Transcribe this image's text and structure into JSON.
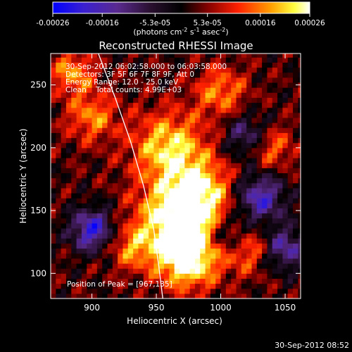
{
  "chart_data": {
    "type": "heatmap",
    "title": "Reconstructed RHESSI Image",
    "xlabel": "Heliocentric X (arcsec)",
    "ylabel": "Heliocentric Y (arcsec)",
    "xlim": [
      868,
      1062
    ],
    "ylim": [
      80,
      275
    ],
    "x_ticks": [
      900,
      950,
      1000,
      1050
    ],
    "y_ticks": [
      100,
      150,
      200,
      250
    ],
    "colorbar": {
      "range": [
        -0.00026,
        0.00026
      ],
      "tick_labels": [
        "-0.00026",
        "-0.00016",
        "-5.3e-05",
        "5.3e-05",
        "0.00016",
        "0.00026"
      ],
      "units_prefix": "(photons cm",
      "units_exp1": "-2",
      "units_mid": " s",
      "units_exp2": "-1",
      "units_mid2": " asec",
      "units_exp3": "-2",
      "units_suffix": ")"
    },
    "info_lines": [
      "30-Sep-2012 06:02:58.000 to 06:03:58.000",
      "Detectors: 3F 5F 6F 7F 8F 9F, Att 0",
      "Energy Range: 12.0 - 25.0 keV",
      "Clean    Total counts: 4.99E+03"
    ],
    "peak_label": "Position of Peak = [967,135]",
    "peak": [
      967,
      135
    ],
    "limb_points": [
      [
        905,
        275
      ],
      [
        918,
        240
      ],
      [
        930,
        205
      ],
      [
        940,
        170
      ],
      [
        948,
        135
      ],
      [
        952,
        105
      ],
      [
        955,
        80
      ]
    ],
    "hotspots": [
      {
        "x": 965,
        "y": 140,
        "amp": 1.0,
        "s": 22
      },
      {
        "x": 960,
        "y": 200,
        "amp": 0.8,
        "s": 20
      },
      {
        "x": 985,
        "y": 165,
        "amp": 0.7,
        "s": 18
      },
      {
        "x": 975,
        "y": 110,
        "amp": 0.85,
        "s": 16
      },
      {
        "x": 900,
        "y": 225,
        "amp": 0.55,
        "s": 14
      },
      {
        "x": 885,
        "y": 260,
        "amp": 0.6,
        "s": 12
      },
      {
        "x": 1000,
        "y": 245,
        "amp": 0.55,
        "s": 14
      },
      {
        "x": 1040,
        "y": 200,
        "amp": 0.5,
        "s": 12
      },
      {
        "x": 930,
        "y": 120,
        "amp": 0.45,
        "s": 12
      },
      {
        "x": 1020,
        "y": 120,
        "amp": 0.5,
        "s": 14
      },
      {
        "x": 900,
        "y": 135,
        "amp": -0.9,
        "s": 12
      },
      {
        "x": 1030,
        "y": 160,
        "amp": -0.8,
        "s": 14
      },
      {
        "x": 1050,
        "y": 120,
        "amp": -0.7,
        "s": 12
      },
      {
        "x": 1020,
        "y": 210,
        "amp": -0.55,
        "s": 12
      },
      {
        "x": 1005,
        "y": 130,
        "amp": -0.6,
        "s": 10
      }
    ]
  },
  "footer": {
    "timestamp": "30-Sep-2012 08:52"
  }
}
